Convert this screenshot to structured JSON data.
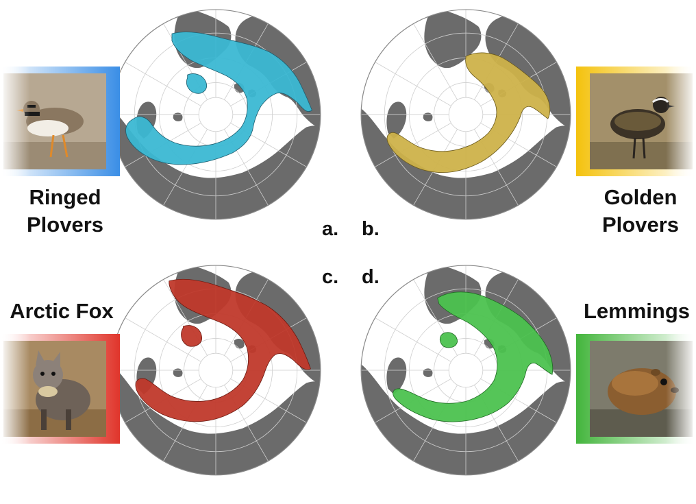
{
  "panels": [
    {
      "id": "a",
      "letter": "a.",
      "species_line1": "Ringed",
      "species_line2": "Plovers",
      "range_color": "#3bb8d3",
      "photo_subject": "ringed-plover-icon"
    },
    {
      "id": "b",
      "letter": "b.",
      "species_line1": "Golden",
      "species_line2": "Plovers",
      "range_color": "#cdb24a",
      "photo_subject": "golden-plover-icon"
    },
    {
      "id": "c",
      "letter": "c.",
      "species_line1": "Arctic Fox",
      "species_line2": "",
      "range_color": "#c0392b",
      "photo_subject": "arctic-fox-icon"
    },
    {
      "id": "d",
      "letter": "d.",
      "species_line1": "Lemmings",
      "species_line2": "",
      "range_color": "#4cc24f",
      "photo_subject": "lemming-icon"
    }
  ],
  "colors": {
    "land": "#6b6b6b",
    "ocean": "#ffffff",
    "graticule": "#c8c8c8",
    "blue_band": "#3a8ee6",
    "gold_band": "#f4c20d",
    "red_band": "#e0352b",
    "green_band": "#43b53c"
  }
}
